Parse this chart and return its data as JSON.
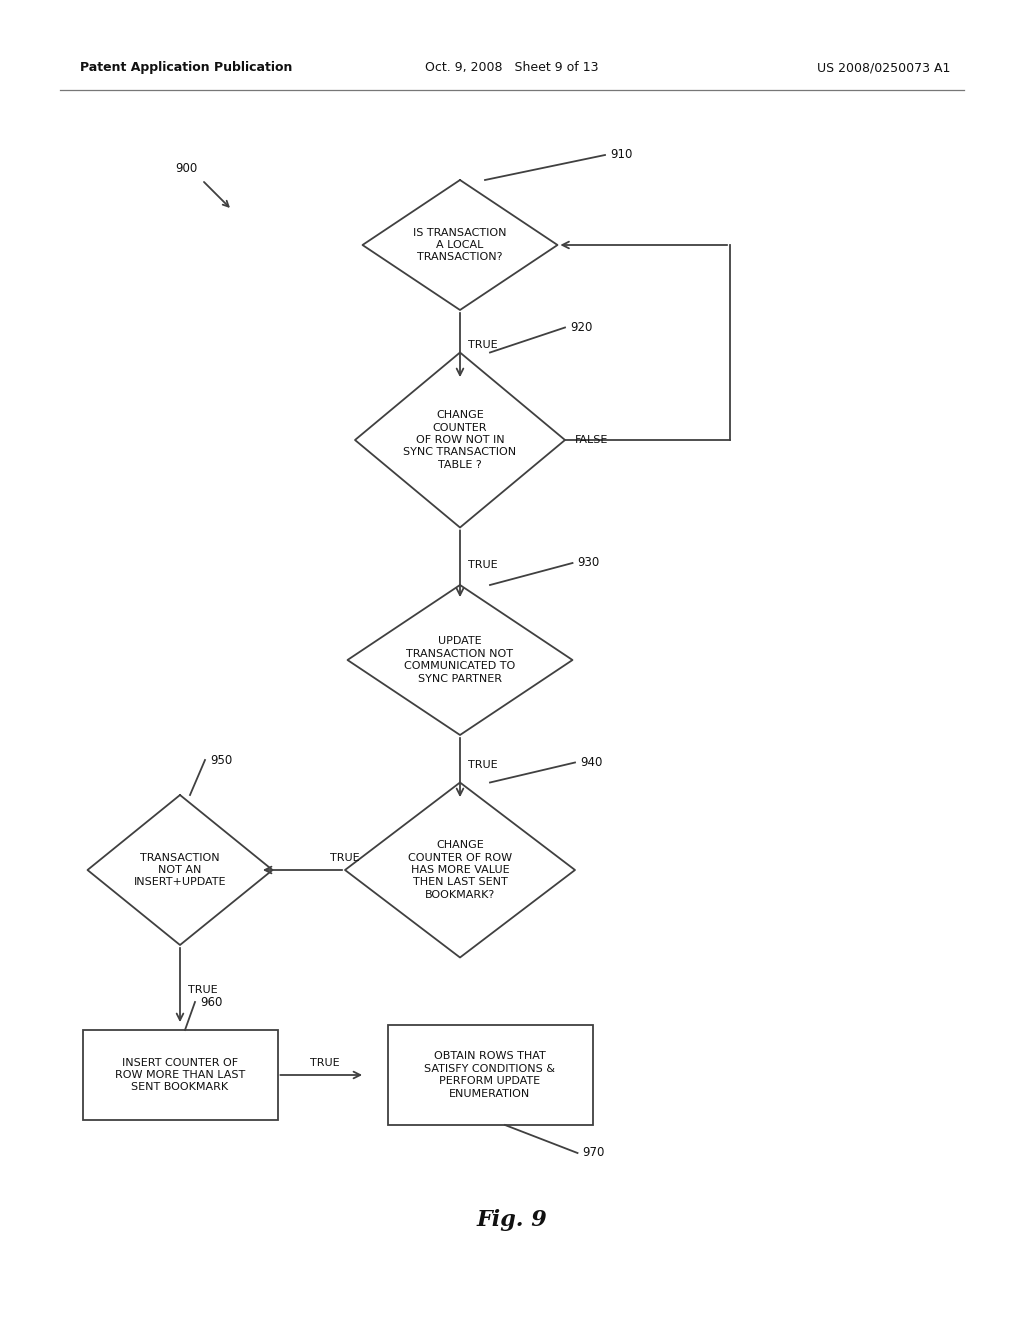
{
  "header_left": "Patent Application Publication",
  "header_mid": "Oct. 9, 2008   Sheet 9 of 13",
  "header_right": "US 2008/0250073 A1",
  "fig_label": "Fig. 9",
  "ref_900": "900",
  "ref_910": "910",
  "ref_920": "920",
  "ref_930": "930",
  "ref_940": "940",
  "ref_950": "950",
  "ref_960": "960",
  "ref_970": "970",
  "diamond_910_text": "IS TRANSACTION\nA LOCAL\nTRANSACTION?",
  "diamond_920_text": "CHANGE\nCOUNTER\nOF ROW NOT IN\nSYNC TRANSACTION\nTABLE ?",
  "diamond_930_text": "UPDATE\nTRANSACTION NOT\nCOMMUNICATED TO\nSYNC PARTNER",
  "diamond_940_text": "CHANGE\nCOUNTER OF ROW\nHAS MORE VALUE\nTHEN LAST SENT\nBOOKMARK?",
  "diamond_950_text": "TRANSACTION\nNOT AN\nINSERT+UPDATE",
  "box_960_text": "INSERT COUNTER OF\nROW MORE THAN LAST\nSENT BOOKMARK",
  "box_970_text": "OBTAIN ROWS THAT\nSATISFY CONDITIONS &\nPERFORM UPDATE\nENUMERATION",
  "bg_color": "#ffffff",
  "shape_edge_color": "#404040",
  "text_color": "#111111",
  "arrow_color": "#404040",
  "true_label": "TRUE",
  "false_label": "FALSE"
}
